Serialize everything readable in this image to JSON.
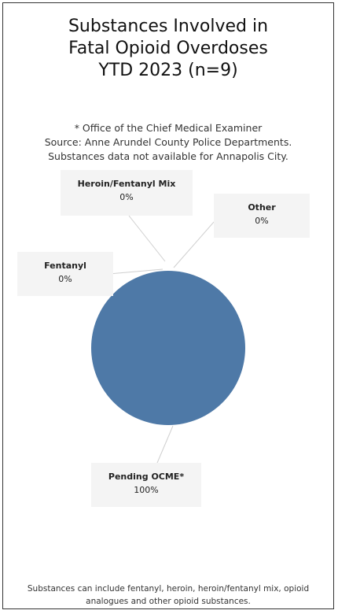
{
  "title_lines": [
    "Substances Involved in",
    "Fatal Opioid Overdoses",
    "YTD 2023 (n=9)"
  ],
  "notes": [
    "* Office of the Chief Medical Examiner",
    "Source: Anne Arundel County Police Departments.",
    "Substances data not available for Annapolis City."
  ],
  "footnote": "Substances can include fentanyl, heroin, heroin/fentanyl mix, opioid analogues and other opioid substances.",
  "chart_data": {
    "type": "pie",
    "title": "Substances Involved in Fatal Opioid Overdoses YTD 2023 (n=9)",
    "slices": [
      {
        "name": "Heroin/Fentanyl Mix",
        "value": 0,
        "label": "0%"
      },
      {
        "name": "Other",
        "value": 0,
        "label": "0%"
      },
      {
        "name": "Fentanyl",
        "value": 0,
        "label": "0%"
      },
      {
        "name": "Pending OCME*",
        "value": 100,
        "label": "100%"
      }
    ],
    "colors": {
      "pie": "#4e79a7",
      "leader": "#cfcfcf",
      "label_bg": "#f4f4f4"
    }
  }
}
